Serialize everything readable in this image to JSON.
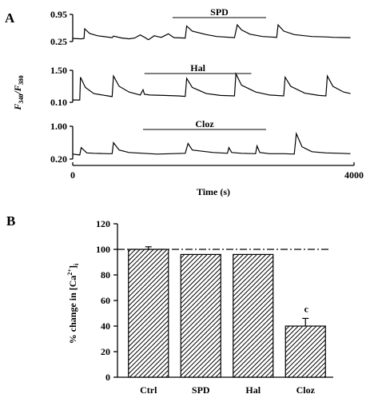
{
  "chart_data": [
    {
      "type": "line",
      "panel": "A",
      "xlabel": "Time (s)",
      "ylabel": "F340/F380",
      "ylabel_main": "F",
      "ylabel_sub1": "340",
      "ylabel_sep": "/F",
      "ylabel_sub2": "380",
      "xlim": [
        0,
        4000
      ],
      "x_ticks": [
        "0",
        "4000"
      ],
      "traces": [
        {
          "drug_label": "SPD",
          "y_ticks": [
            "0.95",
            "0.25"
          ],
          "ylim": [
            0.25,
            0.95
          ],
          "drug_bar": [
            1420,
            2750
          ],
          "x": [
            0,
            120,
            160,
            170,
            240,
            350,
            560,
            580,
            700,
            760,
            800,
            880,
            960,
            1050,
            1060,
            1080,
            1120,
            1160,
            1200,
            1260,
            1360,
            1440,
            1600,
            1620,
            1700,
            1900,
            2050,
            2300,
            2340,
            2400,
            2520,
            2700,
            2900,
            2920,
            3000,
            3150,
            3400,
            3600,
            3700,
            3950
          ],
          "y": [
            0.33,
            0.32,
            0.33,
            0.58,
            0.46,
            0.4,
            0.35,
            0.39,
            0.34,
            0.33,
            0.32,
            0.34,
            0.42,
            0.33,
            0.31,
            0.3,
            0.35,
            0.4,
            0.38,
            0.36,
            0.45,
            0.35,
            0.34,
            0.65,
            0.52,
            0.43,
            0.38,
            0.35,
            0.68,
            0.55,
            0.44,
            0.38,
            0.36,
            0.68,
            0.52,
            0.43,
            0.38,
            0.37,
            0.36,
            0.35
          ]
        },
        {
          "drug_label": "Hal",
          "y_ticks": [
            "1.50",
            "0.10"
          ],
          "ylim": [
            0.1,
            1.5
          ],
          "drug_bar": [
            1020,
            2540
          ],
          "x": [
            0,
            100,
            110,
            180,
            300,
            500,
            560,
            580,
            660,
            800,
            960,
            1000,
            1020,
            1100,
            1300,
            1500,
            1600,
            1620,
            1700,
            1900,
            2100,
            2300,
            2320,
            2400,
            2600,
            2800,
            3000,
            3020,
            3100,
            3300,
            3500,
            3600,
            3620,
            3700,
            3850,
            3950
          ],
          "y": [
            0.2,
            0.2,
            1.2,
            0.75,
            0.48,
            0.38,
            0.35,
            1.25,
            0.8,
            0.55,
            0.42,
            0.65,
            0.45,
            0.42,
            0.4,
            0.38,
            0.36,
            1.15,
            0.75,
            0.48,
            0.4,
            0.38,
            1.35,
            0.85,
            0.55,
            0.42,
            0.38,
            1.2,
            0.8,
            0.5,
            0.4,
            0.38,
            1.25,
            0.8,
            0.55,
            0.48
          ]
        },
        {
          "drug_label": "Cloz",
          "y_ticks": [
            "1.00",
            "0.20"
          ],
          "ylim": [
            0.2,
            1.0
          ],
          "drug_bar": [
            1000,
            2750
          ],
          "x": [
            0,
            100,
            120,
            200,
            300,
            500,
            560,
            580,
            660,
            800,
            1000,
            1200,
            1400,
            1600,
            1640,
            1700,
            1900,
            2000,
            2200,
            2220,
            2260,
            2400,
            2600,
            2620,
            2660,
            2800,
            3000,
            3150,
            3180,
            3260,
            3400,
            3600,
            3800,
            3950
          ],
          "y": [
            0.32,
            0.3,
            0.48,
            0.35,
            0.34,
            0.33,
            0.33,
            0.6,
            0.42,
            0.36,
            0.34,
            0.32,
            0.33,
            0.34,
            0.58,
            0.42,
            0.38,
            0.36,
            0.34,
            0.48,
            0.36,
            0.34,
            0.33,
            0.52,
            0.36,
            0.33,
            0.33,
            0.32,
            0.82,
            0.5,
            0.38,
            0.35,
            0.34,
            0.33
          ]
        }
      ]
    },
    {
      "type": "bar",
      "panel": "B",
      "ylabel": "% change in [Ca²⁺]ᵢ",
      "ylabel_base": "% change in [Ca",
      "ylabel_sup": "2+",
      "ylabel_close": "]",
      "ylabel_sub": "i",
      "categories": [
        "Ctrl",
        "SPD",
        "Hal",
        "Cloz"
      ],
      "values": [
        100,
        96,
        96,
        40
      ],
      "errors": [
        2,
        0,
        0,
        6
      ],
      "ylim": [
        0,
        120
      ],
      "y_ticks": [
        "0",
        "20",
        "40",
        "60",
        "80",
        "100",
        "120"
      ],
      "reference_line": 100,
      "annotations": [
        {
          "category": "Cloz",
          "text": "c"
        }
      ],
      "bar_fill": "#000000"
    }
  ]
}
